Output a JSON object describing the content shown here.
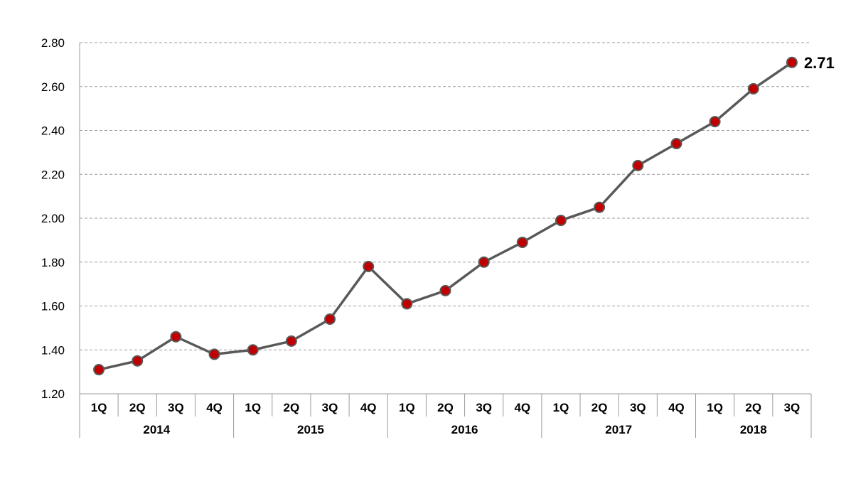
{
  "chart_data": {
    "type": "line",
    "title": "",
    "xlabel": "",
    "ylabel": "",
    "ylim": [
      1.2,
      2.8
    ],
    "ytick_step": 0.2,
    "yticks": [
      "1.20",
      "1.40",
      "1.60",
      "1.80",
      "2.00",
      "2.20",
      "2.40",
      "2.60",
      "2.80"
    ],
    "grid": true,
    "legend": false,
    "categories": [
      "1Q",
      "2Q",
      "3Q",
      "4Q",
      "1Q",
      "2Q",
      "3Q",
      "4Q",
      "1Q",
      "2Q",
      "3Q",
      "4Q",
      "1Q",
      "2Q",
      "3Q",
      "4Q",
      "1Q",
      "2Q",
      "3Q"
    ],
    "years": [
      {
        "label": "2014",
        "count": 4
      },
      {
        "label": "2015",
        "count": 4
      },
      {
        "label": "2016",
        "count": 4
      },
      {
        "label": "2017",
        "count": 4
      },
      {
        "label": "2018",
        "count": 3
      }
    ],
    "series": [
      {
        "values": [
          1.31,
          1.35,
          1.46,
          1.38,
          1.4,
          1.44,
          1.54,
          1.78,
          1.61,
          1.67,
          1.8,
          1.89,
          1.99,
          2.05,
          2.24,
          2.34,
          2.44,
          2.59,
          2.71
        ]
      }
    ],
    "data_labels": [
      {
        "index": 18,
        "text": "2.71"
      }
    ],
    "colors": {
      "line": "#595959",
      "marker_fill": "#c00000",
      "marker_stroke": "#595959",
      "grid": "#9a9a9a",
      "axis": "#9a9a9a"
    }
  }
}
